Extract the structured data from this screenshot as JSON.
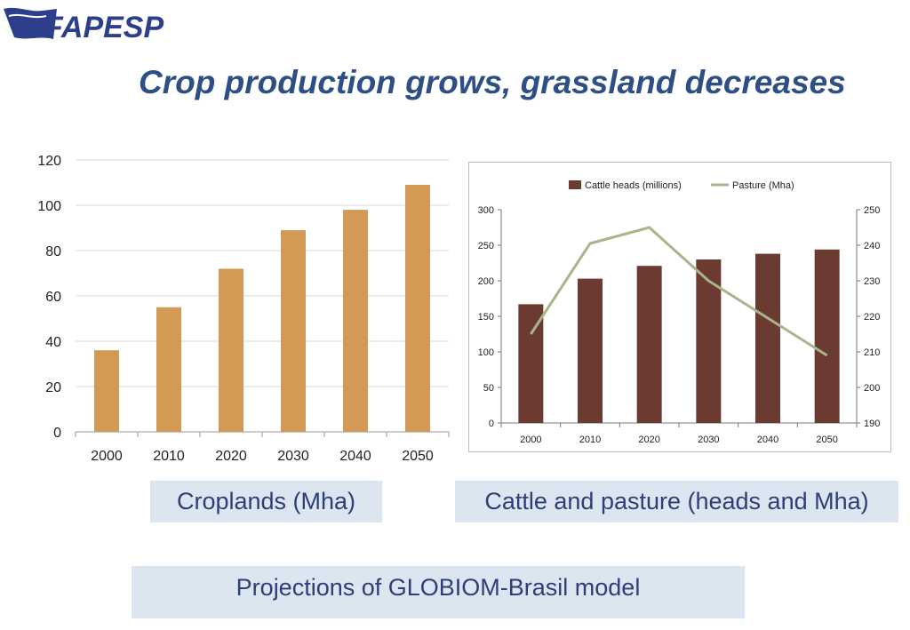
{
  "logo": {
    "text": "FAPESP",
    "color": "#2d3f8c"
  },
  "title": "Crop production grows, grassland decreases",
  "captions": {
    "left": "Croplands (Mha)",
    "right": "Cattle and pasture (heads and Mha)",
    "bottom": "Projections of GLOBIOM-Brasil model"
  },
  "chart_data": [
    {
      "type": "bar",
      "title": "",
      "categories": [
        "2000",
        "2010",
        "2020",
        "2030",
        "2040",
        "2050"
      ],
      "values": [
        36,
        55,
        72,
        89,
        98,
        109
      ],
      "ylim": [
        0,
        120
      ],
      "yticks": [
        "0",
        "20",
        "40",
        "60",
        "80",
        "100",
        "120"
      ],
      "grid": true,
      "color": "#d29a55"
    },
    {
      "type": "bar+line",
      "categories": [
        "2000",
        "2010",
        "2020",
        "2030",
        "2040",
        "2050"
      ],
      "legend_position": "top",
      "grid": false,
      "series": [
        {
          "name": "Cattle heads (millions)",
          "type": "bar",
          "axis": "left",
          "values": [
            167,
            203,
            221,
            230,
            238,
            244
          ],
          "color": "#6b3b32"
        },
        {
          "name": "Pasture (Mha)",
          "type": "line",
          "axis": "right",
          "values": [
            215,
            240.5,
            245,
            230,
            219.5,
            209
          ],
          "color": "#a7b58b"
        }
      ],
      "y_left": {
        "ylim": [
          0,
          300
        ],
        "ticks": [
          "0",
          "50",
          "100",
          "150",
          "200",
          "250",
          "300"
        ]
      },
      "y_right": {
        "ylim": [
          190,
          250
        ],
        "ticks": [
          "190",
          "200",
          "210",
          "220",
          "230",
          "240",
          "250"
        ]
      }
    }
  ]
}
